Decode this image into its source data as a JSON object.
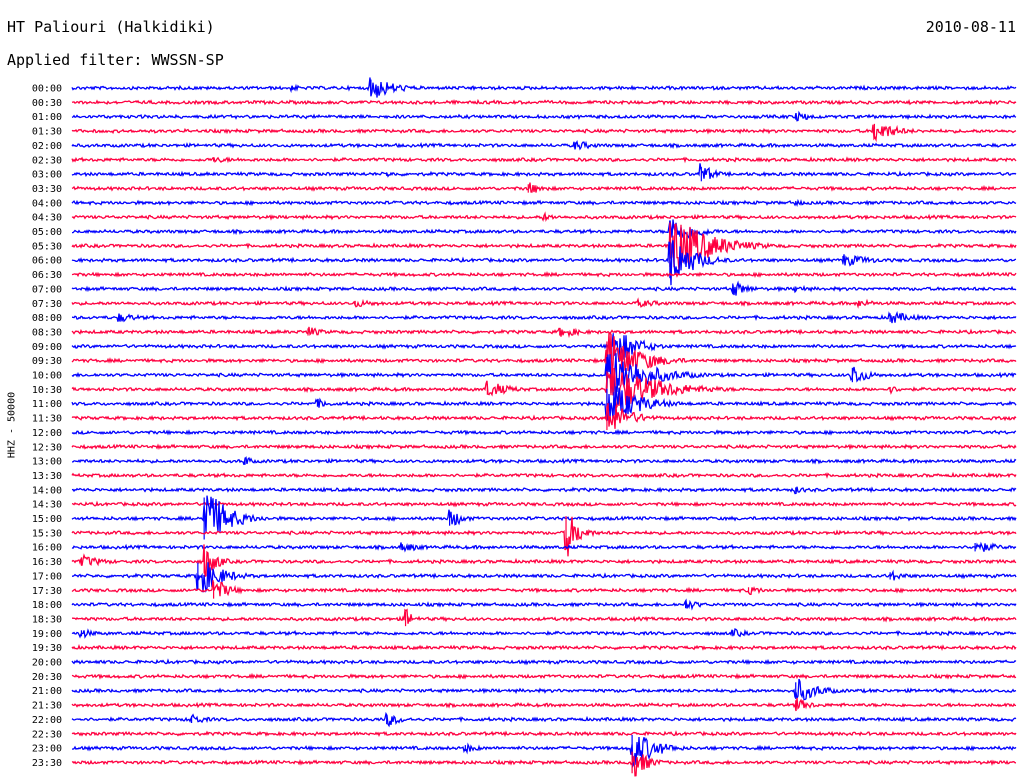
{
  "header": {
    "station": "HT Paliouri (Halkidiki)",
    "date": "2010-08-11",
    "filter_label": "Applied filter: WWSSN-SP",
    "channel_label": "HHZ - 50000"
  },
  "colors": {
    "blue": "#0000ff",
    "red": "#ff0040",
    "text": "#000000"
  },
  "chart_data": {
    "type": "line",
    "title": "HT Paliouri (Halkidiki)",
    "subtitle": "Applied filter: WWSSN-SP",
    "ylabel": "HHZ - 50000",
    "xlabel": "",
    "grid": false,
    "legend": "none",
    "row_minutes": 30,
    "rows": [
      "00:00",
      "00:30",
      "01:00",
      "01:30",
      "02:00",
      "02:30",
      "03:00",
      "03:30",
      "04:00",
      "04:30",
      "05:00",
      "05:30",
      "06:00",
      "06:30",
      "07:00",
      "07:30",
      "08:00",
      "08:30",
      "09:00",
      "09:30",
      "10:00",
      "10:30",
      "11:00",
      "11:30",
      "12:00",
      "12:30",
      "13:00",
      "13:30",
      "14:00",
      "14:30",
      "15:00",
      "15:30",
      "16:00",
      "16:30",
      "17:00",
      "17:30",
      "18:00",
      "18:30",
      "19:00",
      "19:30",
      "20:00",
      "20:30",
      "21:00",
      "21:30",
      "22:00",
      "22:30",
      "23:00",
      "23:30"
    ],
    "row_colors": [
      "blue",
      "red"
    ],
    "events": [
      {
        "row": "00:00",
        "minute": 7.0,
        "amplitude": 3,
        "duration": 1.0
      },
      {
        "row": "00:00",
        "minute": 9.5,
        "amplitude": 14,
        "duration": 1.5
      },
      {
        "row": "00:00",
        "minute": 12.7,
        "amplitude": 2,
        "duration": 0.8
      },
      {
        "row": "01:00",
        "minute": 23.0,
        "amplitude": 5,
        "duration": 1.5
      },
      {
        "row": "01:30",
        "minute": 25.5,
        "amplitude": 12,
        "duration": 1.4
      },
      {
        "row": "02:00",
        "minute": 16.0,
        "amplitude": 5,
        "duration": 1.5
      },
      {
        "row": "02:30",
        "minute": 4.5,
        "amplitude": 3,
        "duration": 2.5
      },
      {
        "row": "03:00",
        "minute": 20.0,
        "amplitude": 12,
        "duration": 0.8
      },
      {
        "row": "03:00",
        "minute": 10.0,
        "amplitude": 3,
        "duration": 1.0
      },
      {
        "row": "03:30",
        "minute": 14.5,
        "amplitude": 7,
        "duration": 1.0
      },
      {
        "row": "04:00",
        "minute": 23.0,
        "amplitude": 3,
        "duration": 1.0
      },
      {
        "row": "04:30",
        "minute": 15.0,
        "amplitude": 4,
        "duration": 1.0
      },
      {
        "row": "05:00",
        "minute": 19.0,
        "amplitude": 18,
        "duration": 1.5
      },
      {
        "row": "05:30",
        "minute": 19.0,
        "amplitude": 35,
        "duration": 2.5
      },
      {
        "row": "06:00",
        "minute": 19.0,
        "amplitude": 30,
        "duration": 1.5
      },
      {
        "row": "06:00",
        "minute": 24.5,
        "amplitude": 7,
        "duration": 2.0
      },
      {
        "row": "07:00",
        "minute": 21.0,
        "amplitude": 9,
        "duration": 1.0
      },
      {
        "row": "07:00",
        "minute": 23.0,
        "amplitude": 4,
        "duration": 1.0
      },
      {
        "row": "07:30",
        "minute": 9.0,
        "amplitude": 4,
        "duration": 2.0
      },
      {
        "row": "07:30",
        "minute": 18.0,
        "amplitude": 4,
        "duration": 2.0
      },
      {
        "row": "07:30",
        "minute": 25.0,
        "amplitude": 4,
        "duration": 1.5
      },
      {
        "row": "08:00",
        "minute": 1.5,
        "amplitude": 5,
        "duration": 1.5
      },
      {
        "row": "08:00",
        "minute": 26.0,
        "amplitude": 7,
        "duration": 1.5
      },
      {
        "row": "08:30",
        "minute": 7.5,
        "amplitude": 6,
        "duration": 1.0
      },
      {
        "row": "08:30",
        "minute": 15.5,
        "amplitude": 6,
        "duration": 1.5
      },
      {
        "row": "09:00",
        "minute": 17.2,
        "amplitude": 22,
        "duration": 1.5
      },
      {
        "row": "09:30",
        "minute": 17.0,
        "amplitude": 32,
        "duration": 2.0
      },
      {
        "row": "10:00",
        "minute": 17.0,
        "amplitude": 30,
        "duration": 2.5
      },
      {
        "row": "10:00",
        "minute": 24.8,
        "amplitude": 12,
        "duration": 1.0
      },
      {
        "row": "10:30",
        "minute": 17.0,
        "amplitude": 30,
        "duration": 3.0
      },
      {
        "row": "10:30",
        "minute": 13.2,
        "amplitude": 9,
        "duration": 1.5
      },
      {
        "row": "10:30",
        "minute": 26.0,
        "amplitude": 4,
        "duration": 1.0
      },
      {
        "row": "11:00",
        "minute": 17.0,
        "amplitude": 25,
        "duration": 2.0
      },
      {
        "row": "11:00",
        "minute": 7.8,
        "amplitude": 5,
        "duration": 1.0
      },
      {
        "row": "11:30",
        "minute": 17.0,
        "amplitude": 20,
        "duration": 1.5
      },
      {
        "row": "13:00",
        "minute": 5.5,
        "amplitude": 6,
        "duration": 0.5
      },
      {
        "row": "14:00",
        "minute": 23.0,
        "amplitude": 4,
        "duration": 1.0
      },
      {
        "row": "15:00",
        "minute": 4.2,
        "amplitude": 35,
        "duration": 1.5
      },
      {
        "row": "15:00",
        "minute": 12.0,
        "amplitude": 12,
        "duration": 0.8
      },
      {
        "row": "15:30",
        "minute": 15.7,
        "amplitude": 28,
        "duration": 0.8
      },
      {
        "row": "16:00",
        "minute": 10.5,
        "amplitude": 5,
        "duration": 1.5
      },
      {
        "row": "16:00",
        "minute": 28.7,
        "amplitude": 7,
        "duration": 1.5
      },
      {
        "row": "16:30",
        "minute": 0.3,
        "amplitude": 7,
        "duration": 1.5
      },
      {
        "row": "16:30",
        "minute": 4.2,
        "amplitude": 20,
        "duration": 0.8
      },
      {
        "row": "17:00",
        "minute": 4.0,
        "amplitude": 22,
        "duration": 1.5
      },
      {
        "row": "17:00",
        "minute": 26.0,
        "amplitude": 6,
        "duration": 1.0
      },
      {
        "row": "17:30",
        "minute": 4.5,
        "amplitude": 14,
        "duration": 1.0
      },
      {
        "row": "17:30",
        "minute": 21.5,
        "amplitude": 5,
        "duration": 1.0
      },
      {
        "row": "18:00",
        "minute": 19.5,
        "amplitude": 6,
        "duration": 1.0
      },
      {
        "row": "18:30",
        "minute": 10.6,
        "amplitude": 12,
        "duration": 0.5
      },
      {
        "row": "19:00",
        "minute": 0.3,
        "amplitude": 5,
        "duration": 1.0
      },
      {
        "row": "19:00",
        "minute": 21.0,
        "amplitude": 5,
        "duration": 1.0
      },
      {
        "row": "21:00",
        "minute": 23.0,
        "amplitude": 14,
        "duration": 1.5
      },
      {
        "row": "21:30",
        "minute": 23.0,
        "amplitude": 8,
        "duration": 1.0
      },
      {
        "row": "22:00",
        "minute": 3.8,
        "amplitude": 6,
        "duration": 1.0
      },
      {
        "row": "22:00",
        "minute": 10.0,
        "amplitude": 8,
        "duration": 1.0
      },
      {
        "row": "23:00",
        "minute": 17.8,
        "amplitude": 22,
        "duration": 1.5
      },
      {
        "row": "23:00",
        "minute": 12.5,
        "amplitude": 5,
        "duration": 1.0
      },
      {
        "row": "23:30",
        "minute": 17.8,
        "amplitude": 18,
        "duration": 1.0
      }
    ]
  }
}
